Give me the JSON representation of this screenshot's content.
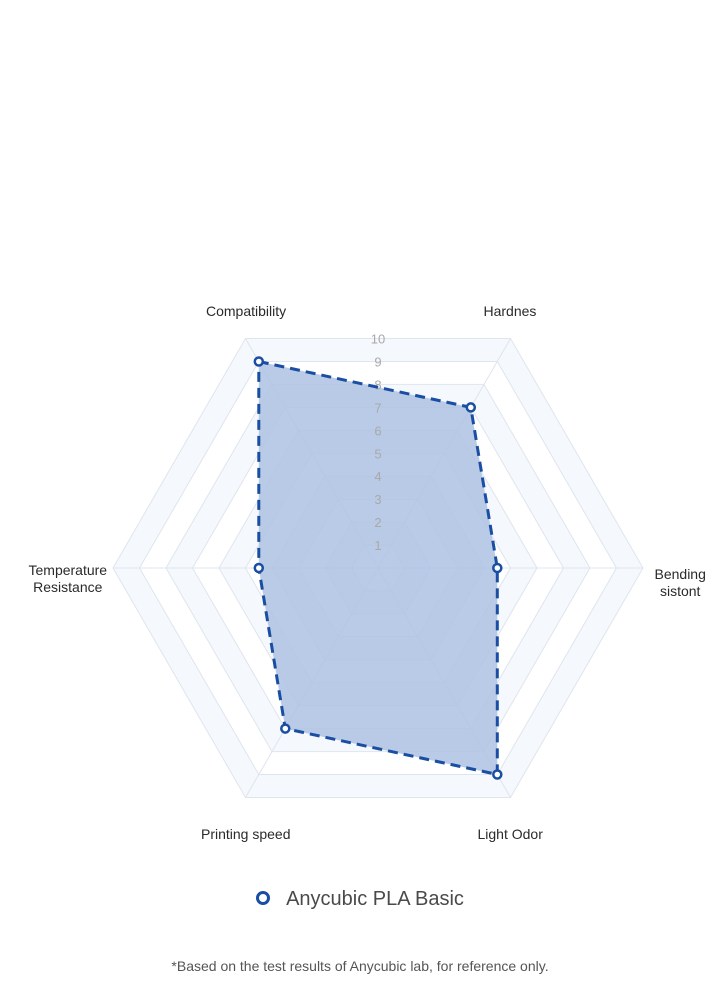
{
  "chart_data": {
    "type": "radar",
    "max": 10,
    "ticks": [
      1,
      2,
      3,
      4,
      5,
      6,
      7,
      8,
      9,
      10
    ],
    "axes": [
      "Compatibility",
      "Hardnes",
      "Bending sistont",
      "Light Odor",
      "Printing speed",
      "Temperature Resistance"
    ],
    "axis_label_lines": [
      [
        "Compatibility"
      ],
      [
        "Hardnes"
      ],
      [
        "Bending",
        "sistont"
      ],
      [
        "Light Odor"
      ],
      [
        "Printing speed"
      ],
      [
        "Temperature",
        "Resistance"
      ]
    ],
    "series": [
      {
        "name": "Anycubic PLA Basic",
        "values": [
          9,
          7,
          4.5,
          9,
          7,
          4.5
        ]
      }
    ],
    "colors": {
      "line": "#1a4ea3",
      "fill": "#aec2e3",
      "grid": "#dfe5ee",
      "band": "#f5f8fc",
      "tick": "#a9a9a9"
    }
  },
  "footnote": "*Based on the test results of Anycubic lab, for reference only."
}
